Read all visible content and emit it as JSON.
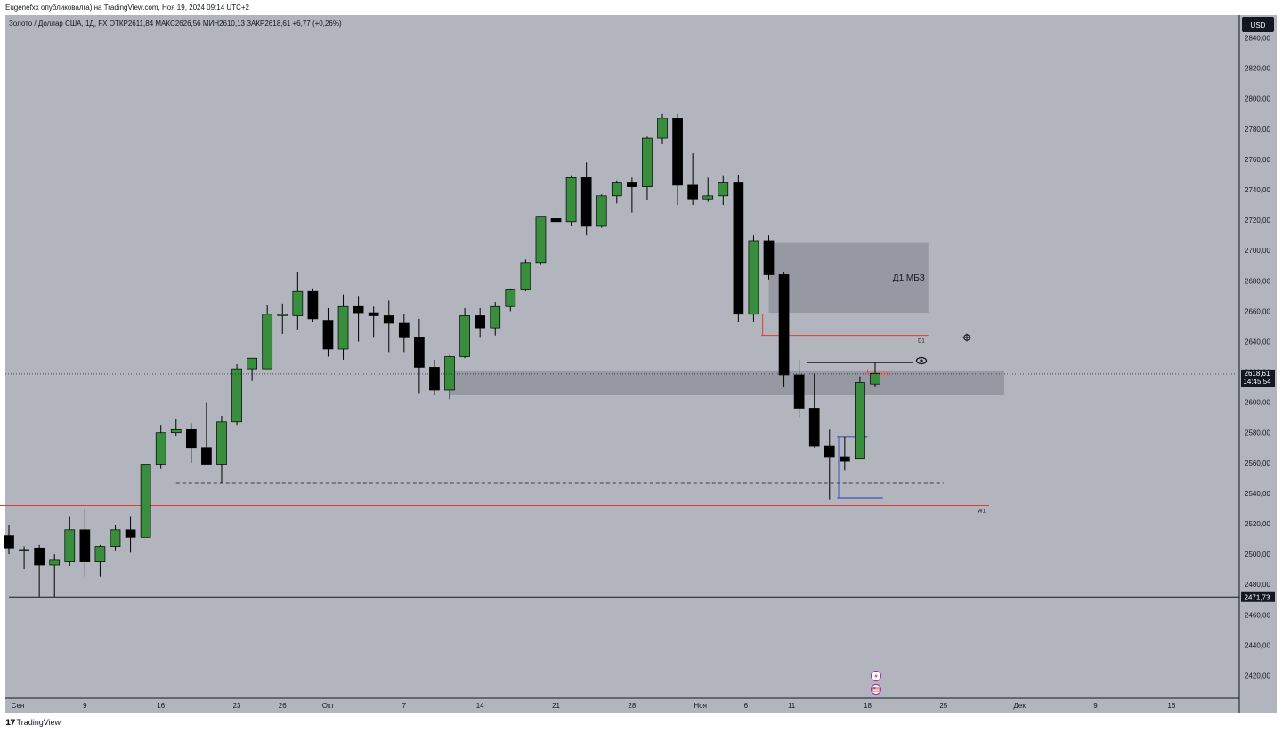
{
  "header": {
    "published_line": "Eugenefxx опубликовал(а) на TradingView.com, Ноя 19, 2024 09:14 UTC+2",
    "legend_line": "Золото / Доллар США, 1Д, FX  ОТКР2611,84  МАКС2626,56  МИН2610,13  ЗАКР2618,61  +6,77 (+0,26%)"
  },
  "footer": {
    "brand": "TradingView",
    "brand_mark": "17"
  },
  "colors": {
    "background": "#b2b5be",
    "bull_body": "#388e3c",
    "bear_body": "#000000",
    "wick": "#000000",
    "zone": "#8c8f9a",
    "red_line": "#e53935",
    "purple_line": "#3f51b5",
    "price_tag_bg": "#131722"
  },
  "chart_data": {
    "type": "candlestick",
    "symbol": "Золото / Доллар США",
    "timeframe": "1Д",
    "currency": "USD",
    "ylim": [
      2405,
      2855
    ],
    "y_ticks": [
      2420,
      2440,
      2460,
      2480,
      2500,
      2520,
      2540,
      2560,
      2580,
      2600,
      2620,
      2640,
      2660,
      2680,
      2700,
      2720,
      2740,
      2760,
      2780,
      2800,
      2820,
      2840
    ],
    "x_labels": [
      "Сен",
      "9",
      "16",
      "23",
      "26",
      "Окт",
      "7",
      "14",
      "21",
      "28",
      "Ноя",
      "6",
      "11",
      "18",
      "25",
      "Дек",
      "9",
      "16"
    ],
    "current_price": "2618,61",
    "countdown": "14:45:54",
    "marked_level": "2471,73",
    "candles": [
      {
        "o": 2512,
        "h": 2519,
        "l": 2500,
        "c": 2504
      },
      {
        "o": 2502,
        "h": 2505,
        "l": 2490,
        "c": 2503
      },
      {
        "o": 2504,
        "h": 2506,
        "l": 2472,
        "c": 2493
      },
      {
        "o": 2493,
        "h": 2500,
        "l": 2472,
        "c": 2496
      },
      {
        "o": 2495,
        "h": 2525,
        "l": 2492,
        "c": 2516
      },
      {
        "o": 2516,
        "h": 2529,
        "l": 2485,
        "c": 2495
      },
      {
        "o": 2495,
        "h": 2506,
        "l": 2485,
        "c": 2505
      },
      {
        "o": 2505,
        "h": 2519,
        "l": 2502,
        "c": 2516
      },
      {
        "o": 2516,
        "h": 2525,
        "l": 2501,
        "c": 2511
      },
      {
        "o": 2511,
        "h": 2559,
        "l": 2511,
        "c": 2559
      },
      {
        "o": 2559,
        "h": 2585,
        "l": 2556,
        "c": 2580
      },
      {
        "o": 2580,
        "h": 2589,
        "l": 2578,
        "c": 2582
      },
      {
        "o": 2582,
        "h": 2586,
        "l": 2560,
        "c": 2570
      },
      {
        "o": 2570,
        "h": 2600,
        "l": 2559,
        "c": 2559
      },
      {
        "o": 2559,
        "h": 2591,
        "l": 2547,
        "c": 2587
      },
      {
        "o": 2587,
        "h": 2625,
        "l": 2585,
        "c": 2622
      },
      {
        "o": 2622,
        "h": 2628,
        "l": 2614,
        "c": 2629
      },
      {
        "o": 2622,
        "h": 2664,
        "l": 2622,
        "c": 2658
      },
      {
        "o": 2658,
        "h": 2665,
        "l": 2645,
        "c": 2658
      },
      {
        "o": 2657,
        "h": 2686,
        "l": 2648,
        "c": 2673
      },
      {
        "o": 2673,
        "h": 2675,
        "l": 2653,
        "c": 2655
      },
      {
        "o": 2654,
        "h": 2662,
        "l": 2630,
        "c": 2635
      },
      {
        "o": 2635,
        "h": 2671,
        "l": 2628,
        "c": 2663
      },
      {
        "o": 2663,
        "h": 2670,
        "l": 2640,
        "c": 2659
      },
      {
        "o": 2659,
        "h": 2663,
        "l": 2643,
        "c": 2657
      },
      {
        "o": 2657,
        "h": 2667,
        "l": 2633,
        "c": 2652
      },
      {
        "o": 2652,
        "h": 2658,
        "l": 2633,
        "c": 2643
      },
      {
        "o": 2643,
        "h": 2655,
        "l": 2606,
        "c": 2623
      },
      {
        "o": 2623,
        "h": 2628,
        "l": 2605,
        "c": 2608
      },
      {
        "o": 2608,
        "h": 2631,
        "l": 2602,
        "c": 2630
      },
      {
        "o": 2630,
        "h": 2662,
        "l": 2629,
        "c": 2657
      },
      {
        "o": 2657,
        "h": 2662,
        "l": 2643,
        "c": 2649
      },
      {
        "o": 2649,
        "h": 2666,
        "l": 2644,
        "c": 2663
      },
      {
        "o": 2663,
        "h": 2675,
        "l": 2660,
        "c": 2674
      },
      {
        "o": 2674,
        "h": 2694,
        "l": 2673,
        "c": 2692
      },
      {
        "o": 2692,
        "h": 2722,
        "l": 2691,
        "c": 2722
      },
      {
        "o": 2721,
        "h": 2725,
        "l": 2717,
        "c": 2719
      },
      {
        "o": 2719,
        "h": 2749,
        "l": 2716,
        "c": 2748
      },
      {
        "o": 2748,
        "h": 2758,
        "l": 2710,
        "c": 2716
      },
      {
        "o": 2716,
        "h": 2737,
        "l": 2715,
        "c": 2736
      },
      {
        "o": 2736,
        "h": 2746,
        "l": 2731,
        "c": 2745
      },
      {
        "o": 2745,
        "h": 2748,
        "l": 2725,
        "c": 2742
      },
      {
        "o": 2742,
        "h": 2775,
        "l": 2733,
        "c": 2774
      },
      {
        "o": 2774,
        "h": 2790,
        "l": 2770,
        "c": 2787
      },
      {
        "o": 2787,
        "h": 2790,
        "l": 2730,
        "c": 2743
      },
      {
        "o": 2743,
        "h": 2764,
        "l": 2730,
        "c": 2734
      },
      {
        "o": 2734,
        "h": 2748,
        "l": 2732,
        "c": 2736
      },
      {
        "o": 2736,
        "h": 2749,
        "l": 2730,
        "c": 2745
      },
      {
        "o": 2745,
        "h": 2750,
        "l": 2653,
        "c": 2658
      },
      {
        "o": 2658,
        "h": 2710,
        "l": 2653,
        "c": 2706
      },
      {
        "o": 2706,
        "h": 2710,
        "l": 2681,
        "c": 2684
      },
      {
        "o": 2684,
        "h": 2686,
        "l": 2610,
        "c": 2618
      },
      {
        "o": 2618,
        "h": 2628,
        "l": 2590,
        "c": 2596
      },
      {
        "o": 2596,
        "h": 2619,
        "l": 2570,
        "c": 2571
      },
      {
        "o": 2571,
        "h": 2582,
        "l": 2536,
        "c": 2564
      },
      {
        "o": 2564,
        "h": 2577,
        "l": 2555,
        "c": 2561
      },
      {
        "o": 2563,
        "h": 2617,
        "l": 2563,
        "c": 2613
      },
      {
        "o": 2612,
        "h": 2626,
        "l": 2610,
        "c": 2619
      }
    ],
    "zones": [
      {
        "label": "Д1 МБЗ",
        "from_index": 50,
        "to_index": 60.5,
        "high": 2705,
        "low": 2659
      },
      {
        "label": "",
        "from_index": 29,
        "to_index": 65.5,
        "high": 2621,
        "low": 2605
      }
    ],
    "levels": [
      {
        "label": "D1",
        "price": 2644,
        "from_index": 49.5,
        "to_index": 60.5,
        "style": "red"
      },
      {
        "label": "W1",
        "price": 2532,
        "from_index": -1,
        "to_index": 64.5,
        "style": "red"
      },
      {
        "label": "",
        "price": 2547,
        "from_index": 11,
        "to_index": 61.5,
        "style": "dashed"
      },
      {
        "label": "",
        "price": 2471.73,
        "from_index": 0,
        "to_index": 81,
        "style": "solid"
      },
      {
        "label": "",
        "price": 2626,
        "from_index": 52.5,
        "to_index": 59.5,
        "style": "thin"
      },
      {
        "label": "",
        "price": 2577,
        "from_index": 54.5,
        "to_index": 56.5,
        "style": "purple"
      },
      {
        "label": "",
        "price": 2537,
        "from_index": 54.5,
        "to_index": 57.5,
        "style": "purple"
      },
      {
        "label": "",
        "price": 2619,
        "from_index": 56.5,
        "to_index": 58,
        "style": "pink"
      }
    ]
  }
}
